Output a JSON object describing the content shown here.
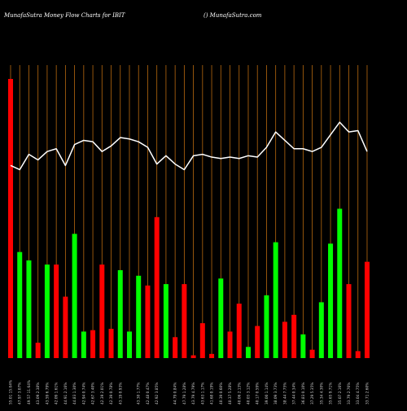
{
  "header": {
    "left": "MunafaSutra  Money Flow  Charts for IBIT",
    "right": "() MunafaSutra.com"
  },
  "colors": {
    "background": "#000000",
    "up_bar": "#00ff00",
    "down_bar": "#ff0000",
    "grid_line": "#b8690f",
    "price_line": "#ffffff",
    "label_text": "#cccccc"
  },
  "chart_data": {
    "type": "bar",
    "title": "Money Flow Charts for IBIT",
    "xlabel": "",
    "ylabel": "",
    "ylim": [
      0,
      100
    ],
    "grid": true,
    "bars": [
      {
        "label": "55.01 15.04%",
        "value": 100,
        "direction": "down"
      },
      {
        "label": "47.97 3.07%",
        "value": 38,
        "direction": "up"
      },
      {
        "label": "49.57 11.64%",
        "value": 35,
        "direction": "up"
      },
      {
        "label": "43.09 2.38%",
        "value": 5.5,
        "direction": "down"
      },
      {
        "label": "43.59 6.79%",
        "value": 33.5,
        "direction": "up"
      },
      {
        "label": "42.09 1.61%",
        "value": 33.5,
        "direction": "down"
      },
      {
        "label": "44.91 2.16%",
        "value": 22,
        "direction": "down"
      },
      {
        "label": "44.83 1.30%",
        "value": 44.5,
        "direction": "up"
      },
      {
        "label": "42.94 0.74%",
        "value": 9.5,
        "direction": "up"
      },
      {
        "label": "42.67 3.40%",
        "value": 10,
        "direction": "down"
      },
      {
        "label": "42.39 2.01%",
        "value": 33.5,
        "direction": "down"
      },
      {
        "label": "42.39 0.78%",
        "value": 10.5,
        "direction": "down"
      },
      {
        "label": "43.19 0.93%",
        "value": 31.5,
        "direction": "up"
      },
      {
        "label": "",
        "value": 9.5,
        "direction": "up"
      },
      {
        "label": "43.30 1.77%",
        "value": 29.5,
        "direction": "up"
      },
      {
        "label": "42.48 0.47%",
        "value": 26,
        "direction": "down"
      },
      {
        "label": "42.92 3.85%",
        "value": 50.5,
        "direction": "down"
      },
      {
        "label": "",
        "value": 26.5,
        "direction": "up"
      },
      {
        "label": "44.79 0.84%",
        "value": 7.5,
        "direction": "down"
      },
      {
        "label": "47.79 1.28%",
        "value": 26.5,
        "direction": "down"
      },
      {
        "label": "43.79 4.79%",
        "value": 1,
        "direction": "down"
      },
      {
        "label": "43.63 1.17%",
        "value": 12.5,
        "direction": "down"
      },
      {
        "label": "41.68 0.19%",
        "value": 1.5,
        "direction": "down"
      },
      {
        "label": "40.39 0.60%",
        "value": 28.5,
        "direction": "up"
      },
      {
        "label": "40.37 5.28%",
        "value": 9.5,
        "direction": "down"
      },
      {
        "label": "40.06 2.13%",
        "value": 19.5,
        "direction": "down"
      },
      {
        "label": "40.03 3.12%",
        "value": 4,
        "direction": "up"
      },
      {
        "label": "40.17 0.59%",
        "value": 11.5,
        "direction": "down"
      },
      {
        "label": "39.00 1.14%",
        "value": 22.5,
        "direction": "up"
      },
      {
        "label": "38.09 3.73%",
        "value": 41.5,
        "direction": "up"
      },
      {
        "label": "38.44 7.75%",
        "value": 13,
        "direction": "down"
      },
      {
        "label": "37.44 0.34%",
        "value": 15.5,
        "direction": "down"
      },
      {
        "label": "36.83 0.10%",
        "value": 8.5,
        "direction": "up"
      },
      {
        "label": "37.29 5.35%",
        "value": 3,
        "direction": "down"
      },
      {
        "label": "35.34 4.30%",
        "value": 20,
        "direction": "up"
      },
      {
        "label": "35.65 9.71%",
        "value": 41,
        "direction": "up"
      },
      {
        "label": "35.07 2.16%",
        "value": 53.5,
        "direction": "up"
      },
      {
        "label": "33.79 2.76%",
        "value": 26.5,
        "direction": "down"
      },
      {
        "label": "33.04 4.75%",
        "value": 2.5,
        "direction": "down"
      },
      {
        "label": "33.71 2.60%",
        "value": 34.5,
        "direction": "down"
      }
    ],
    "price_line": [
      69,
      67.5,
      73,
      71,
      74,
      75,
      69,
      76.5,
      78,
      77.5,
      74,
      76,
      79,
      78.5,
      77.5,
      75.5,
      69.5,
      72.5,
      69.5,
      67.5,
      72.5,
      73,
      72,
      71.5,
      72,
      71.5,
      72.5,
      72,
      75.5,
      81,
      78,
      75,
      75,
      74,
      75.5,
      80,
      84.5,
      81,
      81.5,
      74
    ]
  }
}
